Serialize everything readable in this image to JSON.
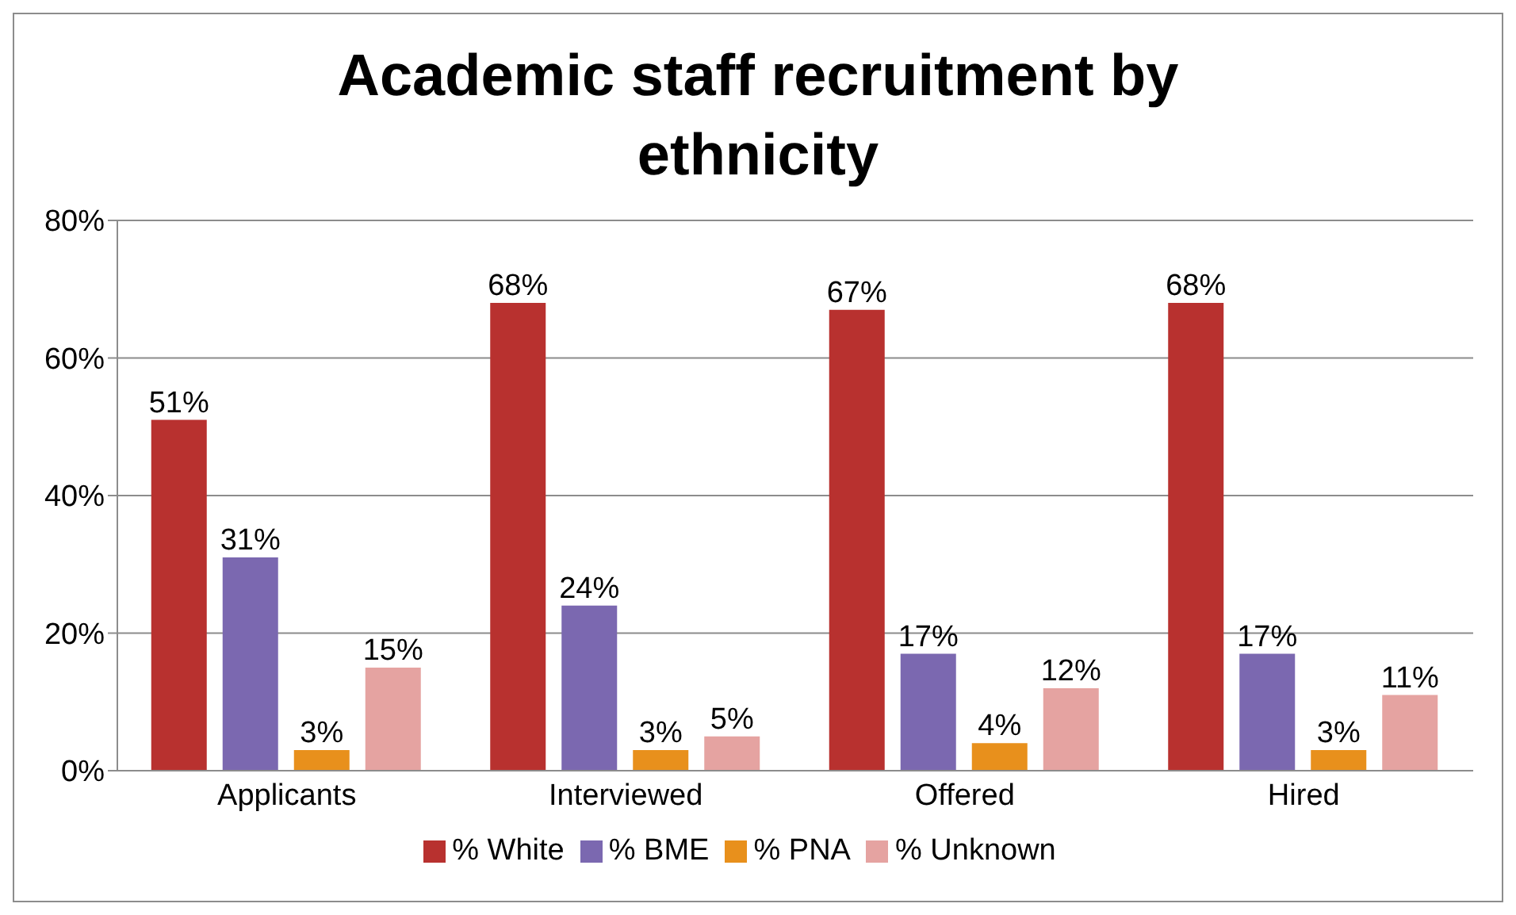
{
  "chart_data": {
    "type": "bar",
    "title": "Academic staff recruitment by ethnicity",
    "categories": [
      "Applicants",
      "Interviewed",
      "Offered",
      "Hired"
    ],
    "series": [
      {
        "name": "% White",
        "color": "#b8312f",
        "values": [
          51,
          68,
          67,
          68
        ],
        "value_labels": [
          "51%",
          "68%",
          "67%",
          "68%"
        ]
      },
      {
        "name": "% BME",
        "color": "#7b68b0",
        "values": [
          31,
          24,
          17,
          17
        ],
        "value_labels": [
          "31%",
          "24%",
          "17%",
          "17%"
        ]
      },
      {
        "name": "% PNA",
        "color": "#e8901c",
        "values": [
          3,
          3,
          4,
          3
        ],
        "value_labels": [
          "3%",
          "3%",
          "4%",
          "3%"
        ]
      },
      {
        "name": "% Unknown",
        "color": "#e5a3a1",
        "values": [
          15,
          5,
          12,
          11
        ],
        "value_labels": [
          "15%",
          "5%",
          "12%",
          "11%"
        ]
      }
    ],
    "ylim": [
      0,
      80
    ],
    "yticks": [
      {
        "value": 0,
        "label": "0%"
      },
      {
        "value": 20,
        "label": "20%"
      },
      {
        "value": 40,
        "label": "40%"
      },
      {
        "value": 60,
        "label": "60%"
      },
      {
        "value": 80,
        "label": "80%"
      }
    ],
    "grid": "y",
    "legend": "bottom"
  }
}
